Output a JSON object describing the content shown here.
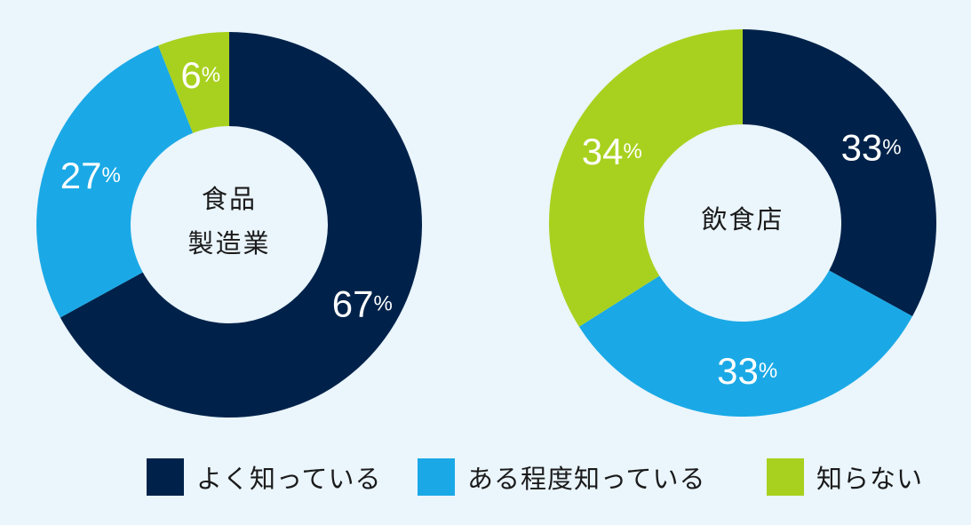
{
  "colors": {
    "background": "#eaf5fc",
    "well_known": "#00224a",
    "somewhat_known": "#1aa9e6",
    "unknown": "#a8d11f"
  },
  "legend": [
    {
      "label": "よく知っている",
      "color": "#00224a"
    },
    {
      "label": "ある程度知っている",
      "color": "#1aa9e6"
    },
    {
      "label": "知らない",
      "color": "#a8d11f"
    }
  ],
  "chart_data": [
    {
      "type": "pie",
      "style": "donut",
      "title_lines": [
        "食品",
        "製造業"
      ],
      "categories": [
        "よく知っている",
        "ある程度知っている",
        "知らない"
      ],
      "values": [
        67,
        27,
        6
      ],
      "labels": [
        {
          "num": "67",
          "unit": "%"
        },
        {
          "num": "27",
          "unit": "%"
        },
        {
          "num": "6",
          "unit": "%"
        }
      ],
      "colors": [
        "#00224a",
        "#1aa9e6",
        "#a8d11f"
      ]
    },
    {
      "type": "pie",
      "style": "donut",
      "title_lines": [
        "飲食店"
      ],
      "categories": [
        "よく知っている",
        "ある程度知っている",
        "知らない"
      ],
      "values": [
        33,
        33,
        34
      ],
      "labels": [
        {
          "num": "33",
          "unit": "%"
        },
        {
          "num": "33",
          "unit": "%"
        },
        {
          "num": "34",
          "unit": "%"
        }
      ],
      "colors": [
        "#00224a",
        "#1aa9e6",
        "#a8d11f"
      ]
    }
  ]
}
